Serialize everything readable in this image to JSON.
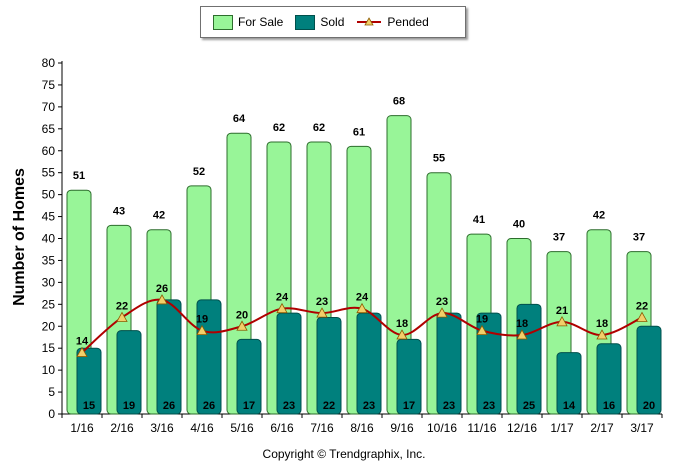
{
  "legend": {
    "for_sale": "For Sale",
    "sold": "Sold",
    "pended": "Pended"
  },
  "copyright": "Copyright © Trendgraphix, Inc.",
  "colors": {
    "for_sale": "#98f598",
    "for_sale_stroke": "#2d6d2d",
    "sold": "#00807d",
    "sold_stroke": "#00504c",
    "pended_line": "#b00000",
    "pended_marker": "#f2cf6a"
  },
  "chart_data": {
    "type": "bar",
    "title": "",
    "xlabel": "",
    "ylabel": "Number of Homes",
    "ylim": [
      0,
      80
    ],
    "ytick_step": 5,
    "categories": [
      "1/16",
      "2/16",
      "3/16",
      "4/16",
      "5/16",
      "6/16",
      "7/16",
      "8/16",
      "9/16",
      "10/16",
      "11/16",
      "12/16",
      "1/17",
      "2/17",
      "3/17"
    ],
    "series": [
      {
        "name": "For Sale",
        "type": "bar",
        "values": [
          51,
          43,
          42,
          52,
          64,
          62,
          62,
          61,
          68,
          55,
          41,
          40,
          37,
          42,
          37
        ]
      },
      {
        "name": "Sold",
        "type": "bar",
        "values": [
          15,
          19,
          26,
          26,
          17,
          23,
          22,
          23,
          17,
          23,
          23,
          25,
          14,
          16,
          20
        ]
      },
      {
        "name": "Pended",
        "type": "line",
        "values": [
          14,
          22,
          26,
          19,
          20,
          24,
          23,
          24,
          18,
          23,
          19,
          18,
          21,
          18,
          22
        ]
      }
    ],
    "grid": false,
    "legend_position": "top-center"
  }
}
